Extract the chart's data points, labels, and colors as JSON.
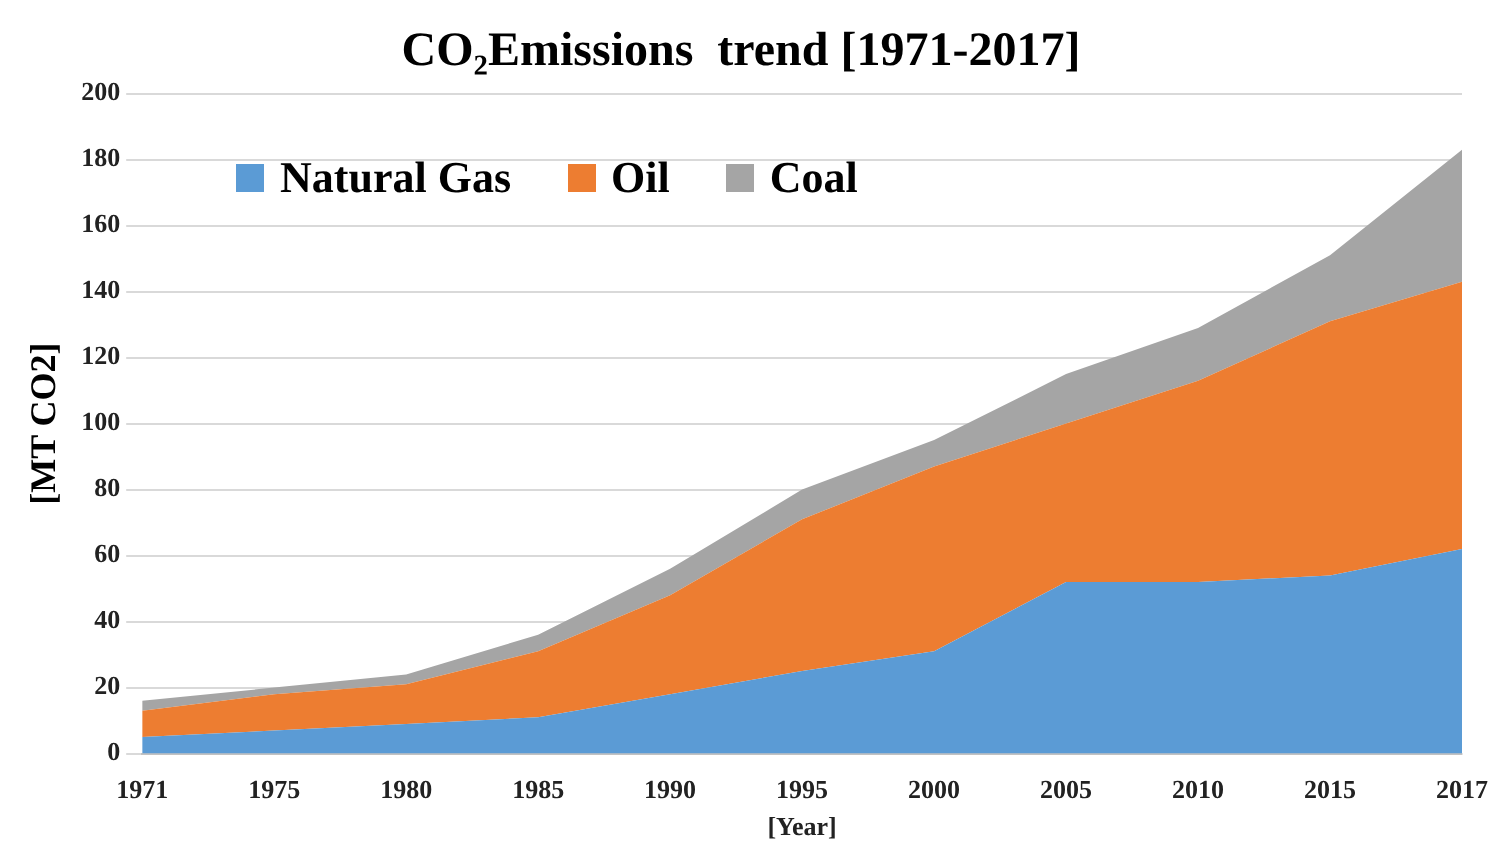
{
  "chart_data": {
    "type": "area",
    "title": "CO₂Emissions  trend [1971-2017]",
    "xlabel": "[Year]",
    "ylabel": "[MT CO2]",
    "stacked": true,
    "categories": [
      "1971",
      "1975",
      "1980",
      "1985",
      "1990",
      "1995",
      "2000",
      "2005",
      "2010",
      "2015",
      "2017"
    ],
    "series": [
      {
        "name": "Natural Gas",
        "color": "#5b9bd5",
        "values": [
          5,
          7,
          9,
          11,
          18,
          25,
          31,
          52,
          52,
          54,
          62
        ]
      },
      {
        "name": "Oil",
        "color": "#ed7d31",
        "values": [
          8,
          11,
          12,
          20,
          30,
          46,
          56,
          48,
          61,
          77,
          81
        ]
      },
      {
        "name": "Coal",
        "color": "#a5a5a5",
        "values": [
          3,
          2,
          3,
          5,
          8,
          9,
          8,
          15,
          16,
          20,
          40
        ]
      }
    ],
    "ylim": [
      0,
      200
    ],
    "yticks": [
      0,
      20,
      40,
      60,
      80,
      100,
      120,
      140,
      160,
      180,
      200
    ],
    "grid": "y",
    "legend": "top left"
  }
}
